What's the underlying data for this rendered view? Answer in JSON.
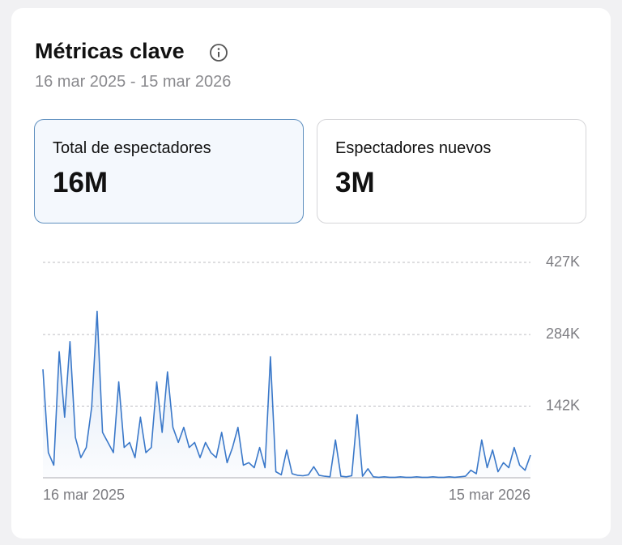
{
  "header": {
    "title": "Métricas clave",
    "subtitle": "16 mar 2025 - 15 mar 2026"
  },
  "cards": [
    {
      "label": "Total de espectadores",
      "value": "16M"
    },
    {
      "label": "Espectadores nuevos",
      "value": "3M"
    }
  ],
  "chart_data": {
    "type": "line",
    "color": "#3a78c9",
    "categories": [
      "16 mar 2025",
      null,
      null,
      null,
      null,
      null,
      null,
      null,
      null,
      null,
      null,
      null,
      null,
      null,
      null,
      null,
      null,
      null,
      null,
      null,
      null,
      null,
      null,
      null,
      null,
      null,
      null,
      null,
      null,
      null,
      null,
      null,
      null,
      null,
      null,
      null,
      null,
      null,
      null,
      null,
      null,
      null,
      null,
      null,
      null,
      null,
      null,
      null,
      null,
      null,
      null,
      null,
      null,
      null,
      null,
      null,
      null,
      null,
      null,
      null,
      null,
      null,
      null,
      null,
      null,
      null,
      null,
      null,
      null,
      null,
      null,
      null,
      null,
      null,
      null,
      null,
      null,
      null,
      null,
      null,
      null,
      null,
      null,
      null,
      null,
      null,
      null,
      null,
      null,
      null,
      "15 mar 2026"
    ],
    "values": [
      215000,
      50000,
      25000,
      250000,
      120000,
      270000,
      80000,
      40000,
      60000,
      140000,
      330000,
      90000,
      70000,
      50000,
      190000,
      60000,
      70000,
      40000,
      120000,
      50000,
      60000,
      190000,
      90000,
      210000,
      100000,
      70000,
      100000,
      60000,
      70000,
      40000,
      70000,
      50000,
      40000,
      90000,
      30000,
      60000,
      100000,
      25000,
      30000,
      20000,
      60000,
      20000,
      240000,
      12000,
      6000,
      55000,
      8000,
      5000,
      4000,
      6000,
      22000,
      5000,
      3000,
      2000,
      75000,
      3000,
      2000,
      4000,
      125000,
      3000,
      18000,
      2000,
      1000,
      2000,
      1000,
      1000,
      2000,
      1000,
      1000,
      2000,
      1000,
      1000,
      2000,
      1000,
      1000,
      2000,
      1000,
      2000,
      3000,
      15000,
      8000,
      75000,
      20000,
      55000,
      12000,
      30000,
      20000,
      60000,
      25000,
      15000,
      45000
    ],
    "ylim": [
      0,
      427000
    ],
    "yticks": [
      {
        "value": 142000,
        "label": "142K"
      },
      {
        "value": 284000,
        "label": "284K"
      },
      {
        "value": 427000,
        "label": "427K"
      }
    ],
    "grid": true
  }
}
